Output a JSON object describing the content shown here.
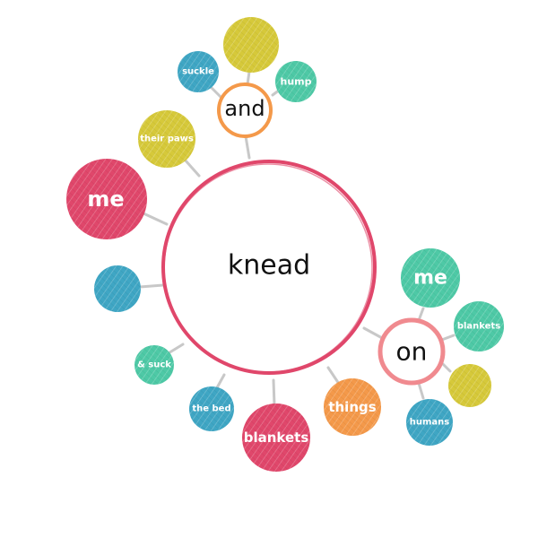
{
  "center": {
    "label": "knead",
    "ring_color": "#e0476b"
  },
  "hubs": {
    "and": {
      "label": "and",
      "ring_color": "#f4994a"
    },
    "on": {
      "label": "on",
      "ring_color": "#f08a8f"
    }
  },
  "nodes": {
    "me_left": {
      "label": "me",
      "color": "#e0476b"
    },
    "their_paws": {
      "label": "their paws",
      "color": "#d6c93a"
    },
    "blank_blue_left": {
      "label": "",
      "color": "#3fa6c4"
    },
    "and_suck": {
      "label": "& suck",
      "color": "#4ec9a6"
    },
    "the_bed": {
      "label": "the bed",
      "color": "#3fa6c4"
    },
    "blankets_bottom": {
      "label": "blankets",
      "color": "#e0476b"
    },
    "things": {
      "label": "things",
      "color": "#f4994a"
    },
    "suckle": {
      "label": "suckle",
      "color": "#3fa6c4"
    },
    "blank_yellow_top": {
      "label": "",
      "color": "#d6c93a"
    },
    "hump": {
      "label": "hump",
      "color": "#4ec9a6"
    },
    "me_right": {
      "label": "me",
      "color": "#4ec9a6"
    },
    "blankets_right": {
      "label": "blankets",
      "color": "#4ec9a6"
    },
    "blank_yellow_right": {
      "label": "",
      "color": "#d6c93a"
    },
    "humans": {
      "label": "humans",
      "color": "#3fa6c4"
    }
  },
  "colors": {
    "connector": "#c8c8c8"
  }
}
